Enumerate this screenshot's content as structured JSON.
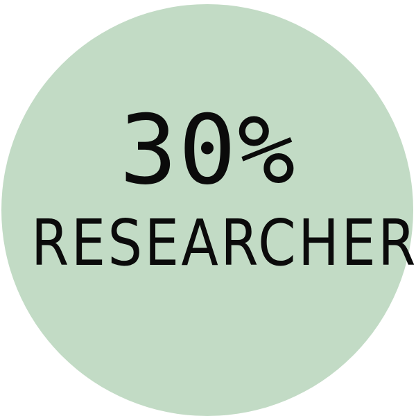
{
  "badge": {
    "percentage": "30%",
    "label": "RESEARCHER",
    "circle_color": "#c2dbc5",
    "text_color": "#0b0b0b"
  }
}
